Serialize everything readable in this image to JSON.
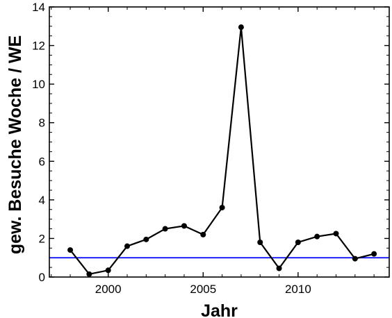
{
  "chart_data": {
    "type": "line",
    "xlabel": "Jahr",
    "ylabel": "gew. Besuche Woche / WE",
    "xlim": [
      1996.9,
      2014.8
    ],
    "ylim": [
      0,
      14
    ],
    "x_ticks": [
      2000,
      2005,
      2010
    ],
    "y_ticks": [
      0,
      2,
      4,
      6,
      8,
      10,
      12,
      14
    ],
    "grid": false,
    "legend": "none",
    "series": [
      {
        "color": "#000000",
        "marker": "circle",
        "x": [
          1998,
          1999,
          2000,
          2001,
          2002,
          2003,
          2004,
          2005,
          2006,
          2007,
          2008,
          2009,
          2010,
          2011,
          2012,
          2013,
          2014
        ],
        "y": [
          1.4,
          0.15,
          0.35,
          1.6,
          1.95,
          2.5,
          2.65,
          2.2,
          3.6,
          12.95,
          1.8,
          0.45,
          1.8,
          2.1,
          2.25,
          0.95,
          1.2
        ]
      }
    ],
    "reference_line": {
      "y": 1.0,
      "color": "#0000ff"
    }
  }
}
